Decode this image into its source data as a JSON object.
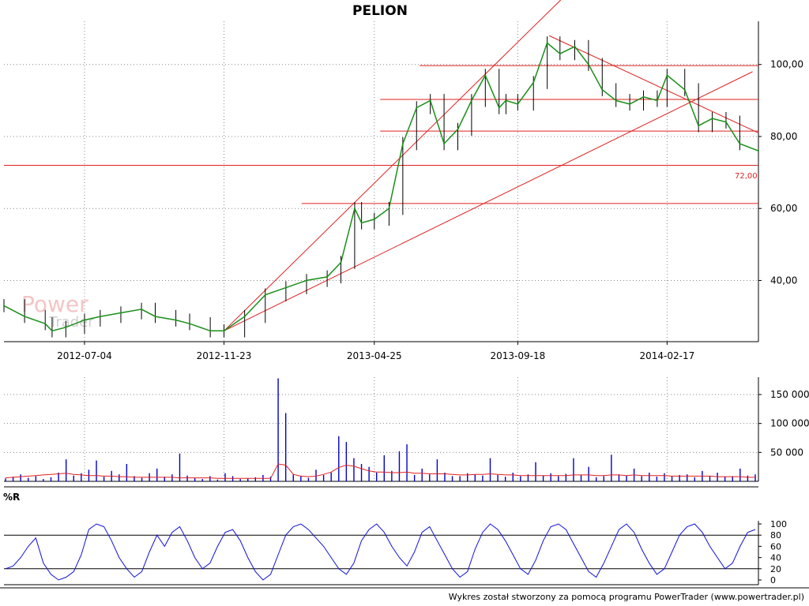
{
  "title": "PELION",
  "footer": "Wykres został stworzony za pomocą programu PowerTrader (www.powertrader.pl)",
  "watermark": {
    "line1": "Power",
    "line2": "Trader"
  },
  "colors": {
    "price_line": "#1a8f1a",
    "price_candle": "#000000",
    "trend_line": "#e02020",
    "volume_bar": "#0000cc",
    "volume_avg": "#e02020",
    "williams": "#1010dd",
    "grid": "#888888"
  },
  "chart_data": [
    {
      "type": "line",
      "name": "price-panel",
      "title": "PELION",
      "ylim": [
        23,
        112
      ],
      "yticks": [
        "40,00",
        "60,00",
        "80,00",
        "100,00"
      ],
      "ytick_values": [
        40,
        60,
        80,
        100
      ],
      "xticks": [
        "2012-07-04",
        "2012-11-23",
        "2013-04-25",
        "2013-09-18",
        "2014-02-17"
      ],
      "x_range": [
        "2012-04-13",
        "2014-05-21"
      ],
      "grid": true,
      "price_label": "72,00",
      "x": [
        "2012-04-13",
        "2012-05-04",
        "2012-05-25",
        "2012-06-01",
        "2012-06-15",
        "2012-07-04",
        "2012-07-20",
        "2012-08-10",
        "2012-08-31",
        "2012-09-14",
        "2012-10-05",
        "2012-10-19",
        "2012-11-09",
        "2012-11-23",
        "2012-12-14",
        "2013-01-04",
        "2013-01-25",
        "2013-02-15",
        "2013-03-08",
        "2013-03-22",
        "2013-04-05",
        "2013-04-12",
        "2013-04-25",
        "2013-05-10",
        "2013-05-24",
        "2013-06-07",
        "2013-06-21",
        "2013-07-05",
        "2013-07-19",
        "2013-08-02",
        "2013-08-16",
        "2013-08-30",
        "2013-09-06",
        "2013-09-18",
        "2013-10-04",
        "2013-10-18",
        "2013-10-31",
        "2013-11-15",
        "2013-11-29",
        "2013-12-13",
        "2013-12-27",
        "2014-01-10",
        "2014-01-24",
        "2014-02-07",
        "2014-02-17",
        "2014-03-07",
        "2014-03-21",
        "2014-04-04",
        "2014-04-18",
        "2014-05-02",
        "2014-05-21"
      ],
      "y": [
        33,
        30,
        28,
        26,
        27,
        29,
        30,
        31,
        32,
        30,
        29,
        28,
        26,
        26,
        30,
        36,
        38,
        40,
        41,
        45,
        60,
        56,
        57,
        60,
        78,
        88,
        90,
        78,
        82,
        90,
        97,
        88,
        90,
        89,
        95,
        106,
        103,
        105,
        100,
        93,
        90,
        89,
        91,
        90,
        97,
        93,
        83,
        85,
        84,
        78,
        76
      ],
      "trend_lines": [
        {
          "x": [
            "2012-11-23",
            "2013-11-01"
          ],
          "y": [
            26,
            118
          ]
        },
        {
          "x": [
            "2012-11-23",
            "2014-05-15"
          ],
          "y": [
            26,
            98
          ]
        },
        {
          "x": [
            "2013-10-20",
            "2014-05-21"
          ],
          "y": [
            108,
            81
          ]
        }
      ],
      "horizontal_levels": [
        {
          "y": 99.7,
          "from": "2013-06-10",
          "to": "2014-05-21"
        },
        {
          "y": 90.3,
          "from": "2013-05-01",
          "to": "2014-05-21"
        },
        {
          "y": 81.5,
          "from": "2013-05-01",
          "to": "2014-05-21"
        },
        {
          "y": 72.0,
          "from": "2012-04-13",
          "to": "2014-05-21"
        },
        {
          "y": 61.4,
          "from": "2013-02-10",
          "to": "2014-05-21"
        }
      ]
    },
    {
      "type": "bar",
      "name": "volume-panel",
      "ylim": [
        0,
        180000
      ],
      "yticks": [
        "50 000",
        "100 000",
        "150 000"
      ],
      "ytick_values": [
        50000,
        100000,
        150000
      ],
      "values": [
        5000,
        8000,
        12000,
        6000,
        9000,
        4000,
        7000,
        15000,
        38000,
        10000,
        14000,
        20000,
        36000,
        8000,
        18000,
        12000,
        30000,
        9000,
        6000,
        14000,
        22000,
        8000,
        12000,
        48000,
        10000,
        6000,
        4000,
        9000,
        3000,
        14000,
        9000,
        4000,
        5000,
        7000,
        11000,
        8000,
        178000,
        118000,
        12000,
        9000,
        6000,
        20000,
        11000,
        15000,
        78000,
        68000,
        40000,
        30000,
        25000,
        15000,
        45000,
        18000,
        52000,
        64000,
        11000,
        22000,
        12000,
        38000,
        15000,
        9000,
        9000,
        14000,
        12000,
        10000,
        40000,
        11000,
        8000,
        15000,
        9000,
        12000,
        33000,
        10000,
        14000,
        9000,
        13000,
        40000,
        11000,
        25000,
        7000,
        9000,
        46000,
        12000,
        10000,
        22000,
        9000,
        15000,
        8000,
        14000,
        9000,
        11000,
        12000,
        7000,
        18000,
        9000,
        15000,
        8000,
        9000,
        22000,
        10000,
        12000
      ],
      "avg": [
        6000,
        7000,
        8000,
        9000,
        10000,
        11000,
        12000,
        13000,
        14000,
        12000,
        11000,
        10000,
        10000,
        9000,
        9000,
        8000,
        8000,
        7000,
        7000,
        7000,
        7000,
        7000,
        7000,
        6000,
        6000,
        6000,
        6000,
        6000,
        5000,
        5000,
        5000,
        5000,
        5000,
        5000,
        5000,
        5000,
        30000,
        28000,
        12000,
        9000,
        8000,
        9000,
        12000,
        16000,
        24000,
        28000,
        26000,
        22000,
        18000,
        16000,
        16000,
        15000,
        15000,
        16000,
        14000,
        14000,
        13000,
        13000,
        13000,
        12000,
        11000,
        11000,
        12000,
        12000,
        13000,
        12000,
        11000,
        11000,
        10000,
        10000,
        10000,
        10000,
        10000,
        10000,
        10000,
        11000,
        11000,
        11000,
        10000,
        10000,
        11000,
        11000,
        10000,
        11000,
        10000,
        10000,
        10000,
        10000,
        9000,
        9000,
        9000,
        9000,
        9000,
        9000,
        8000,
        8000,
        8000,
        8000,
        7000,
        7000
      ]
    },
    {
      "type": "line",
      "name": "williams-r-panel",
      "title": "%R",
      "ylim": [
        0,
        100
      ],
      "yticks": [
        "0",
        "20",
        "40",
        "60",
        "80",
        "100"
      ],
      "ytick_values": [
        0,
        20,
        40,
        60,
        80,
        100
      ],
      "reference_levels": [
        20,
        80
      ],
      "values": [
        20,
        25,
        40,
        60,
        75,
        30,
        10,
        0,
        5,
        15,
        45,
        90,
        100,
        95,
        70,
        40,
        20,
        5,
        15,
        50,
        80,
        60,
        85,
        95,
        70,
        40,
        20,
        30,
        60,
        85,
        90,
        70,
        40,
        15,
        0,
        10,
        45,
        80,
        95,
        100,
        90,
        75,
        60,
        40,
        20,
        10,
        30,
        70,
        90,
        100,
        85,
        60,
        40,
        25,
        50,
        85,
        95,
        70,
        45,
        20,
        5,
        15,
        55,
        85,
        100,
        90,
        70,
        45,
        20,
        10,
        35,
        70,
        95,
        100,
        90,
        65,
        40,
        15,
        5,
        30,
        60,
        90,
        100,
        85,
        55,
        30,
        10,
        20,
        50,
        80,
        95,
        100,
        85,
        60,
        40,
        20,
        30,
        60,
        85,
        90
      ]
    }
  ]
}
